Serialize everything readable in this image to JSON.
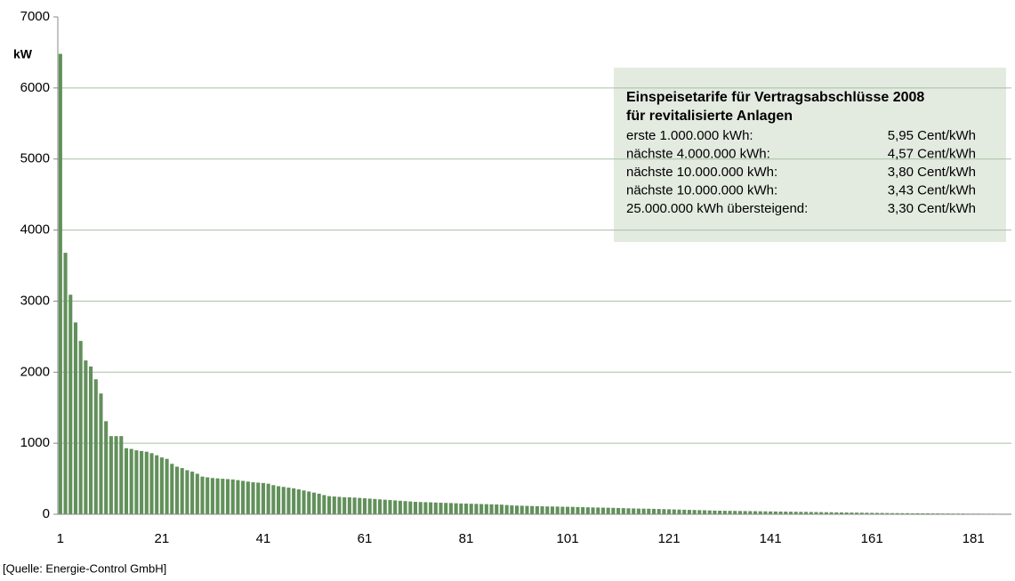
{
  "chart_data": {
    "type": "bar",
    "y_unit": "kW",
    "source": "[Quelle: Energie-Control GmbH]",
    "color": "#62905b",
    "ylim": [
      0,
      7000
    ],
    "yticks": [
      0,
      1000,
      2000,
      3000,
      4000,
      5000,
      6000,
      7000
    ],
    "grid": true,
    "info_box": {
      "title": [
        "Einspeisetarife für Vertragsabschlüsse 2008",
        "für revitalisierte Anlagen"
      ],
      "rows": [
        [
          "erste 1.000.000 kWh:",
          "5,95 Cent/kWh"
        ],
        [
          "nächste 4.000.000 kWh:",
          "4,57 Cent/kWh"
        ],
        [
          "nächste 10.000.000 kWh:",
          "3,80 Cent/kWh"
        ],
        [
          "nächste 10.000.000 kWh:",
          "3,43 Cent/kWh"
        ],
        [
          "25.000.000 kWh übersteigend:",
          "3,30 Cent/kWh"
        ]
      ]
    },
    "categories": [
      "1",
      null,
      null,
      null,
      null,
      null,
      null,
      null,
      null,
      null,
      null,
      null,
      null,
      null,
      null,
      null,
      null,
      null,
      null,
      null,
      "21",
      null,
      null,
      null,
      null,
      null,
      null,
      null,
      null,
      null,
      null,
      null,
      null,
      null,
      null,
      null,
      null,
      null,
      null,
      null,
      "41",
      null,
      null,
      null,
      null,
      null,
      null,
      null,
      null,
      null,
      null,
      null,
      null,
      null,
      null,
      null,
      null,
      null,
      null,
      null,
      "61",
      null,
      null,
      null,
      null,
      null,
      null,
      null,
      null,
      null,
      null,
      null,
      null,
      null,
      null,
      null,
      null,
      null,
      null,
      null,
      "81",
      null,
      null,
      null,
      null,
      null,
      null,
      null,
      null,
      null,
      null,
      null,
      null,
      null,
      null,
      null,
      null,
      null,
      null,
      null,
      "101",
      null,
      null,
      null,
      null,
      null,
      null,
      null,
      null,
      null,
      null,
      null,
      null,
      null,
      null,
      null,
      null,
      null,
      null,
      null,
      "121",
      null,
      null,
      null,
      null,
      null,
      null,
      null,
      null,
      null,
      null,
      null,
      null,
      null,
      null,
      null,
      null,
      null,
      null,
      null,
      "141",
      null,
      null,
      null,
      null,
      null,
      null,
      null,
      null,
      null,
      null,
      null,
      null,
      null,
      null,
      null,
      null,
      null,
      null,
      null,
      "161",
      null,
      null,
      null,
      null,
      null,
      null,
      null,
      null,
      null,
      null,
      null,
      null,
      null,
      null,
      null,
      null,
      null,
      null,
      null,
      "181",
      null,
      null,
      null,
      null,
      null,
      null,
      null
    ],
    "values": [
      6480,
      3680,
      3090,
      2700,
      2440,
      2165,
      2080,
      1900,
      1700,
      1310,
      1100,
      1100,
      1100,
      930,
      920,
      900,
      890,
      880,
      860,
      830,
      800,
      780,
      710,
      670,
      650,
      620,
      600,
      570,
      530,
      520,
      510,
      505,
      500,
      495,
      490,
      480,
      470,
      460,
      450,
      445,
      440,
      430,
      410,
      395,
      385,
      375,
      365,
      350,
      335,
      320,
      305,
      290,
      270,
      255,
      250,
      245,
      240,
      238,
      235,
      230,
      225,
      220,
      215,
      210,
      205,
      200,
      195,
      190,
      185,
      180,
      175,
      172,
      170,
      168,
      165,
      162,
      160,
      158,
      155,
      152,
      150,
      148,
      146,
      144,
      142,
      140,
      138,
      135,
      130,
      125,
      122,
      120,
      118,
      116,
      114,
      112,
      110,
      109,
      108,
      106,
      105,
      104,
      102,
      100,
      98,
      96,
      95,
      93,
      92,
      90,
      88,
      86,
      84,
      82,
      80,
      79,
      78,
      76,
      74,
      72,
      70,
      68,
      66,
      64,
      62,
      60,
      58,
      56,
      54,
      52,
      50,
      49,
      48,
      47,
      46,
      45,
      44,
      43,
      42,
      41,
      40,
      39,
      38,
      37,
      36,
      35,
      34,
      33,
      32,
      31,
      30,
      29,
      28,
      27,
      26,
      25,
      24,
      23,
      22,
      21,
      20,
      19,
      18,
      17,
      16,
      16,
      15,
      15,
      14,
      14,
      13,
      13,
      12,
      12,
      11,
      11,
      10,
      10,
      10,
      9,
      9,
      9,
      8,
      8,
      8,
      7,
      7,
      7
    ]
  }
}
